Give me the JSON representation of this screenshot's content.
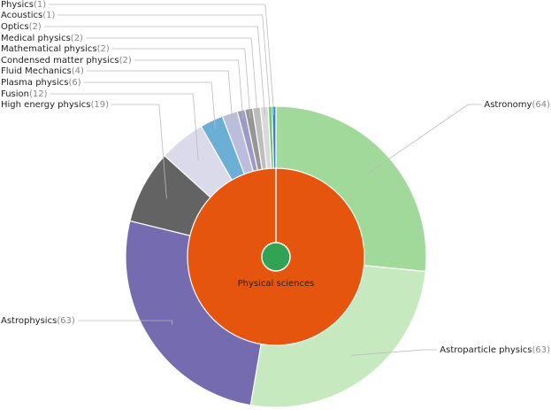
{
  "chart_data": {
    "type": "sunburst",
    "root": {
      "name": "Physical sciences",
      "color": "#e6550d"
    },
    "center_color": "#31a354",
    "categories": [
      "Astronomy",
      "Astroparticle physics",
      "Astrophysics",
      "High energy physics",
      "Fusion",
      "Plasma physics",
      "Fluid Mechanics",
      "Condensed matter physics",
      "Mathematical physics",
      "Medical physics",
      "Optics",
      "Acoustics",
      "Physics"
    ],
    "values": [
      64,
      63,
      63,
      19,
      12,
      6,
      4,
      2,
      2,
      2,
      2,
      1,
      1
    ],
    "value_labels": [
      "(64)",
      "(63)",
      "(63)",
      "(19)",
      "(12)",
      "(6)",
      "(4)",
      "(2)",
      "(2)",
      "(2)",
      "(2)",
      "(1)",
      "(1)"
    ],
    "colors": [
      "#a1d99b",
      "#c7e9c0",
      "#756bb1",
      "#636363",
      "#dadaeb",
      "#6baed6",
      "#bcbddc",
      "#9e9ac8",
      "#969696",
      "#bdbdbd",
      "#d9d9d9",
      "#74c476",
      "#3182bd"
    ]
  }
}
